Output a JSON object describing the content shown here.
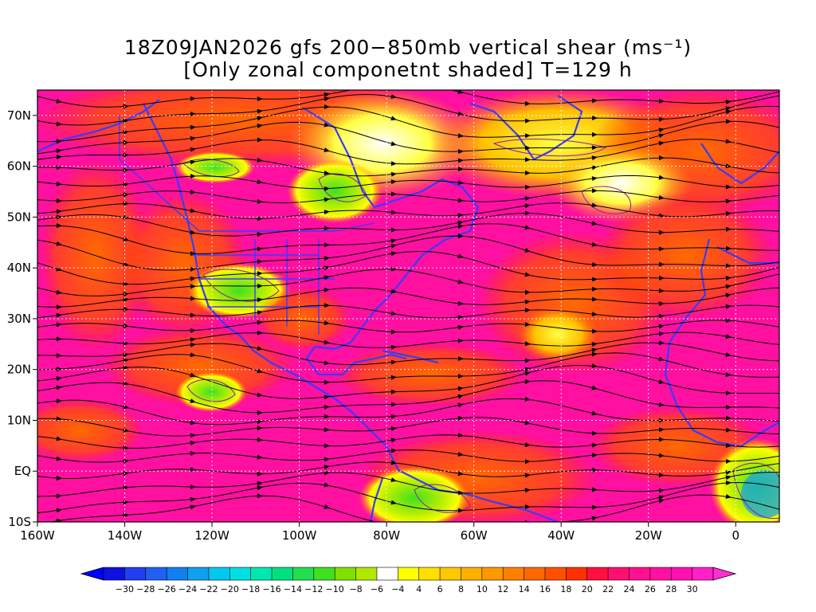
{
  "title": {
    "line1": "18Z09JAN2026 gfs 200−850mb vertical shear (ms⁻¹)",
    "line2": "[Only zonal componetnt shaded] T=129 h"
  },
  "map": {
    "lon_range": [
      -160,
      10
    ],
    "lat_range": [
      -10,
      75
    ],
    "x_ticks": [
      {
        "lon": -160,
        "label": "160W"
      },
      {
        "lon": -140,
        "label": "140W"
      },
      {
        "lon": -120,
        "label": "120W"
      },
      {
        "lon": -100,
        "label": "100W"
      },
      {
        "lon": -80,
        "label": "80W"
      },
      {
        "lon": -60,
        "label": "60W"
      },
      {
        "lon": -40,
        "label": "40W"
      },
      {
        "lon": -20,
        "label": "20W"
      },
      {
        "lon": 0,
        "label": "0"
      }
    ],
    "y_ticks": [
      {
        "lat": 70,
        "label": "70N"
      },
      {
        "lat": 60,
        "label": "60N"
      },
      {
        "lat": 50,
        "label": "50N"
      },
      {
        "lat": 40,
        "label": "40N"
      },
      {
        "lat": 30,
        "label": "30N"
      },
      {
        "lat": 20,
        "label": "20N"
      },
      {
        "lat": 10,
        "label": "10N"
      },
      {
        "lat": 0,
        "label": "EQ"
      },
      {
        "lat": -10,
        "label": "10S"
      }
    ],
    "grid": "dotted-white",
    "coastline_color": "#3a3aff",
    "streamline_color": "#000000"
  },
  "colorbar": {
    "labels": [
      "−30",
      "−28",
      "−26",
      "−24",
      "−22",
      "−20",
      "−18",
      "−16",
      "−14",
      "−12",
      "−10",
      "−8",
      "−6",
      "−4",
      "4",
      "6",
      "8",
      "10",
      "12",
      "14",
      "16",
      "18",
      "20",
      "22",
      "24",
      "26",
      "28",
      "30"
    ],
    "colors": [
      "#1010e0",
      "#2040f0",
      "#2060f0",
      "#1080f0",
      "#10a0f0",
      "#00c8f0",
      "#00e0e0",
      "#00e8b0",
      "#00e080",
      "#20e050",
      "#40e020",
      "#80e000",
      "#b0e800",
      "#ffffff",
      "#ffff00",
      "#ffe000",
      "#ffc800",
      "#ffb000",
      "#ff9800",
      "#ff8000",
      "#ff6800",
      "#ff5000",
      "#ff3000",
      "#ff1040",
      "#ff1070",
      "#ff1090",
      "#ff10a0",
      "#ff10b0",
      "#ff20c8"
    ],
    "left_arrow_color": "#0000ff",
    "right_arrow_color": "#ff30d0"
  }
}
